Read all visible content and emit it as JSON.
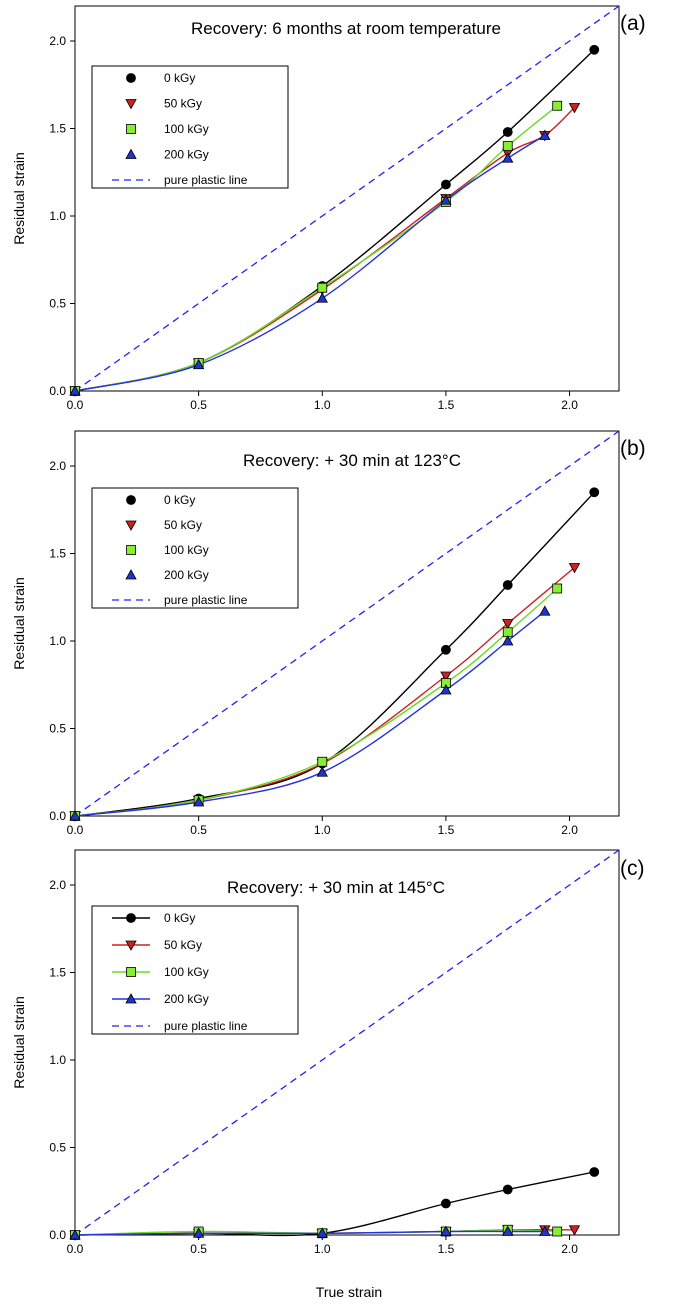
{
  "figure": {
    "xlabel_bottom": "True strain"
  },
  "chart_data": [
    {
      "panel": "(a)",
      "type": "line",
      "title": "Recovery: 6 months at room temperature",
      "xlabel": "",
      "ylabel": "Residual strain",
      "xlim": [
        0,
        2.2
      ],
      "ylim": [
        0,
        2.2
      ],
      "xticks": [
        "0.0",
        "0.5",
        "1.0",
        "1.5",
        "2.0"
      ],
      "yticks": [
        "0.0",
        "0.5",
        "1.0",
        "1.5",
        "2.0"
      ],
      "legend_placement": "upper-left",
      "legend_style": "marker",
      "series": [
        {
          "name": "0 kGy",
          "color": "#000000",
          "marker": "circle",
          "marker_fill": "#000000",
          "x": [
            0,
            0.5,
            1.0,
            1.5,
            1.75,
            2.1
          ],
          "y": [
            0,
            0.16,
            0.6,
            1.18,
            1.48,
            1.95
          ]
        },
        {
          "name": "50 kGy",
          "color": "#cc2222",
          "marker": "triangle-down",
          "marker_fill": "#cc2222",
          "x": [
            0,
            0.5,
            1.0,
            1.5,
            1.75,
            1.9,
            2.02
          ],
          "y": [
            0,
            0.16,
            0.58,
            1.1,
            1.36,
            1.46,
            1.62
          ]
        },
        {
          "name": "100 kGy",
          "color": "#66dd22",
          "marker": "square",
          "marker_fill": "#88ee33",
          "x": [
            0,
            0.5,
            1.0,
            1.5,
            1.75,
            1.95
          ],
          "y": [
            0,
            0.16,
            0.59,
            1.08,
            1.4,
            1.63
          ]
        },
        {
          "name": "200 kGy",
          "color": "#2233dd",
          "marker": "triangle-up",
          "marker_fill": "#2233cc",
          "x": [
            0,
            0.5,
            1.0,
            1.5,
            1.75,
            1.9
          ],
          "y": [
            0,
            0.15,
            0.53,
            1.09,
            1.33,
            1.46
          ]
        }
      ],
      "reference_line": {
        "name": "pure plastic line",
        "color": "#2222ee",
        "x": [
          0,
          2.2
        ],
        "y": [
          0,
          2.2
        ]
      }
    },
    {
      "panel": "(b)",
      "type": "line",
      "title": "Recovery: + 30 min at  123°C",
      "xlabel": "",
      "ylabel": "Residual strain",
      "xlim": [
        0,
        2.2
      ],
      "ylim": [
        0,
        2.2
      ],
      "xticks": [
        "0.0",
        "0.5",
        "1.0",
        "1.5",
        "2.0"
      ],
      "yticks": [
        "0.0",
        "0.5",
        "1.0",
        "1.5",
        "2.0"
      ],
      "legend_placement": "upper-left",
      "legend_style": "marker",
      "series": [
        {
          "name": "0 kGy",
          "color": "#000000",
          "marker": "circle",
          "marker_fill": "#000000",
          "x": [
            0,
            0.5,
            1.0,
            1.5,
            1.75,
            2.1
          ],
          "y": [
            0,
            0.1,
            0.3,
            0.95,
            1.32,
            1.85
          ]
        },
        {
          "name": "50 kGy",
          "color": "#cc2222",
          "marker": "triangle-down",
          "marker_fill": "#cc2222",
          "x": [
            0,
            0.5,
            1.0,
            1.5,
            1.75,
            2.02
          ],
          "y": [
            0,
            0.09,
            0.3,
            0.8,
            1.1,
            1.42
          ]
        },
        {
          "name": "100 kGy",
          "color": "#66dd22",
          "marker": "square",
          "marker_fill": "#88ee33",
          "x": [
            0,
            0.5,
            1.0,
            1.5,
            1.75,
            1.95
          ],
          "y": [
            0,
            0.09,
            0.31,
            0.76,
            1.05,
            1.3
          ]
        },
        {
          "name": "200 kGy",
          "color": "#2233dd",
          "marker": "triangle-up",
          "marker_fill": "#2233cc",
          "x": [
            0,
            0.5,
            1.0,
            1.5,
            1.75,
            1.9
          ],
          "y": [
            0,
            0.08,
            0.25,
            0.72,
            1.0,
            1.17
          ]
        }
      ],
      "reference_line": {
        "name": "pure plastic line",
        "color": "#2222ee",
        "x": [
          0,
          2.2
        ],
        "y": [
          0,
          2.2
        ]
      }
    },
    {
      "panel": "(c)",
      "type": "line",
      "title": "Recovery: + 30 min at 145°C",
      "xlabel": "True strain",
      "ylabel": "Residual strain",
      "xlim": [
        0,
        2.2
      ],
      "ylim": [
        0,
        2.2
      ],
      "xticks": [
        "0.0",
        "0.5",
        "1.0",
        "1.5",
        "2.0"
      ],
      "yticks": [
        "0.0",
        "0.5",
        "1.0",
        "1.5",
        "2.0"
      ],
      "legend_placement": "upper-left",
      "legend_style": "line",
      "series": [
        {
          "name": "0 kGy",
          "color": "#000000",
          "marker": "circle",
          "marker_fill": "#000000",
          "x": [
            0,
            0.5,
            1.0,
            1.5,
            1.75,
            2.1
          ],
          "y": [
            0,
            0.01,
            0.01,
            0.18,
            0.26,
            0.36
          ]
        },
        {
          "name": "50 kGy",
          "color": "#cc2222",
          "marker": "triangle-down",
          "marker_fill": "#cc2222",
          "x": [
            0,
            0.5,
            1.0,
            1.5,
            1.75,
            1.9,
            2.02
          ],
          "y": [
            0,
            0.01,
            0.01,
            0.02,
            0.03,
            0.03,
            0.03
          ]
        },
        {
          "name": "100 kGy",
          "color": "#66dd22",
          "marker": "square",
          "marker_fill": "#88ee33",
          "x": [
            0,
            0.5,
            1.0,
            1.5,
            1.75,
            1.95
          ],
          "y": [
            0,
            0.02,
            0.01,
            0.02,
            0.03,
            0.02
          ]
        },
        {
          "name": "200 kGy",
          "color": "#2233dd",
          "marker": "triangle-up",
          "marker_fill": "#2233cc",
          "x": [
            0,
            0.5,
            1.0,
            1.5,
            1.75,
            1.9
          ],
          "y": [
            0,
            0.01,
            0.01,
            0.02,
            0.02,
            0.02
          ]
        }
      ],
      "reference_line": {
        "name": "pure plastic line",
        "color": "#2222ee",
        "x": [
          0,
          2.2
        ],
        "y": [
          0,
          2.2
        ]
      }
    }
  ]
}
